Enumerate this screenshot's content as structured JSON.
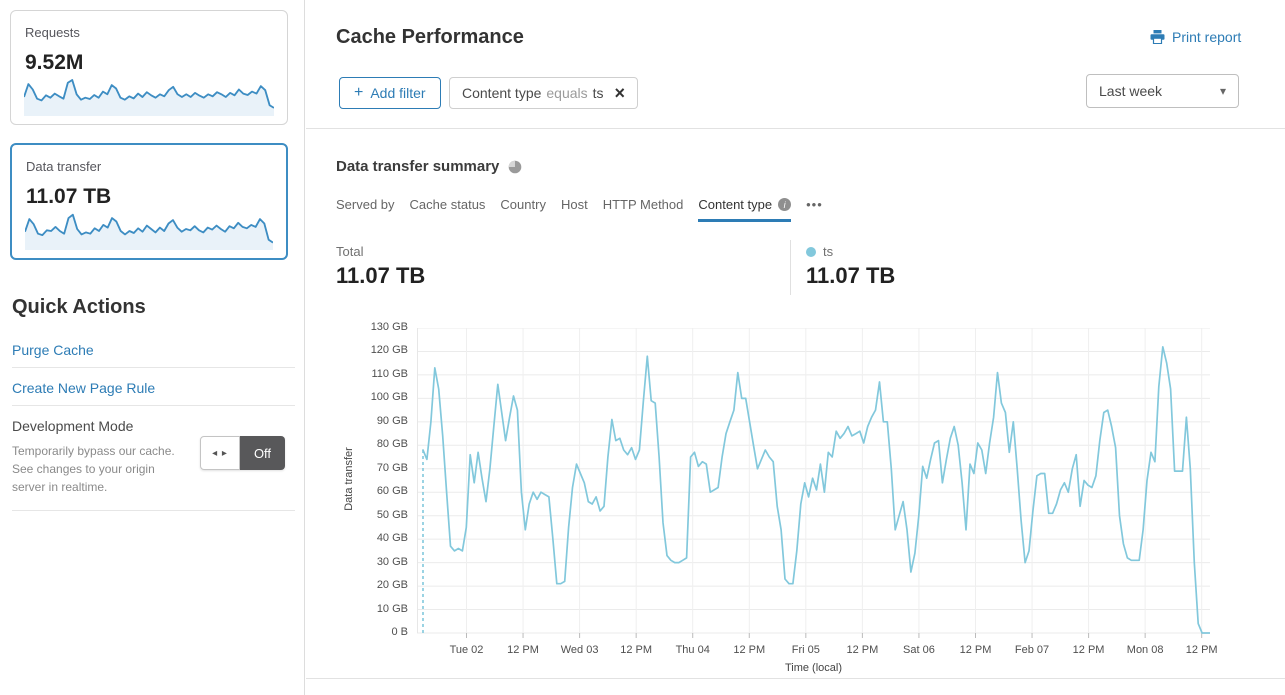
{
  "sidebar": {
    "cards": [
      {
        "label": "Requests",
        "value": "9.52M"
      },
      {
        "label": "Data transfer",
        "value": "11.07 TB"
      }
    ],
    "quick_actions_title": "Quick Actions",
    "links": [
      "Purge Cache",
      "Create New Page Rule"
    ],
    "dev_mode": {
      "title": "Development Mode",
      "description": "Temporarily bypass our cache. See changes to your origin server in realtime.",
      "toggle_label": "Off"
    }
  },
  "header": {
    "title": "Cache Performance",
    "print_label": "Print report",
    "add_filter_label": "Add filter",
    "filter_chip": {
      "field": "Content type",
      "operator": "equals",
      "value": "ts"
    },
    "time_range": "Last week"
  },
  "summary": {
    "title": "Data transfer summary",
    "tabs": [
      "Served by",
      "Cache status",
      "Country",
      "Host",
      "HTTP Method",
      "Content type"
    ],
    "active_tab": "Content type",
    "total_label": "Total",
    "total_value": "11.07 TB",
    "legend_label": "ts",
    "legend_value": "11.07 TB"
  },
  "icons": {
    "plus": "+",
    "close": "×",
    "caret_down": "▾",
    "more": "•••",
    "dev_toggle_arrows": "◂ ▸",
    "info": "i"
  },
  "colors": {
    "link_blue": "#2d7cb5",
    "chart_line": "#82c8dc",
    "spark_line": "#3d8dc3",
    "spark_fill": "#e9f2f9",
    "grid": "#ebebeb",
    "selected_card_border": "#3d8dc3",
    "toggle_off_bg": "#58585a"
  },
  "chart_data": [
    {
      "id": "data-transfer-timeseries",
      "type": "line",
      "title": "Data transfer summary",
      "xlabel": "Time (local)",
      "ylabel": "Data transfer",
      "unit": "GB",
      "ylim": [
        0,
        130
      ],
      "grid": true,
      "y_ticks": [
        "0 B",
        "10 GB",
        "20 GB",
        "30 GB",
        "40 GB",
        "50 GB",
        "60 GB",
        "70 GB",
        "80 GB",
        "90 GB",
        "100 GB",
        "110 GB",
        "120 GB",
        "130 GB"
      ],
      "x_ticks": [
        "Tue 02",
        "12 PM",
        "Wed 03",
        "12 PM",
        "Thu 04",
        "12 PM",
        "Fri 05",
        "12 PM",
        "Sat 06",
        "12 PM",
        "Feb 07",
        "12 PM",
        "Mon 08",
        "12 PM"
      ],
      "legend": [
        {
          "label": "ts",
          "color": "#82c8dc"
        }
      ],
      "series": [
        {
          "name": "ts",
          "values": [
            78,
            74,
            90,
            113,
            104,
            84,
            60,
            37,
            35,
            36,
            35,
            45,
            76,
            64,
            77,
            66,
            56,
            70,
            88,
            106,
            94,
            82,
            92,
            101,
            95,
            60,
            44,
            55,
            60,
            57,
            60,
            59,
            58,
            40,
            21,
            21,
            22,
            45,
            62,
            72,
            68,
            64,
            56,
            55,
            58,
            52,
            54,
            75,
            91,
            82,
            83,
            78,
            76,
            79,
            74,
            78,
            99,
            118,
            99,
            98,
            75,
            47,
            33,
            31,
            30,
            30,
            31,
            32,
            75,
            77,
            71,
            73,
            72,
            60,
            61,
            62,
            75,
            85,
            90,
            95,
            111,
            100,
            100,
            90,
            80,
            70,
            74,
            78,
            75,
            73,
            54,
            44,
            23,
            21,
            21,
            35,
            55,
            64,
            58,
            66,
            61,
            72,
            60,
            77,
            75,
            86,
            83,
            85,
            88,
            84,
            85,
            86,
            81,
            88,
            92,
            95,
            107,
            90,
            90,
            70,
            44,
            50,
            56,
            44,
            26,
            34,
            50,
            71,
            66,
            74,
            81,
            82,
            64,
            74,
            83,
            88,
            80,
            64,
            44,
            72,
            68,
            81,
            78,
            68,
            81,
            92,
            111,
            98,
            94,
            77,
            90,
            70,
            48,
            30,
            35,
            52,
            67,
            68,
            68,
            51,
            51,
            55,
            61,
            64,
            60,
            70,
            76,
            54,
            65,
            63,
            62,
            67,
            82,
            94,
            95,
            88,
            79,
            50,
            38,
            32,
            31,
            31,
            31,
            44,
            65,
            77,
            73,
            105,
            122,
            115,
            104,
            69,
            69,
            69,
            92,
            70,
            30,
            4,
            0,
            0,
            0
          ]
        }
      ]
    },
    {
      "id": "requests-sparkline",
      "type": "line",
      "title": "Requests",
      "values": [
        50,
        88,
        72,
        45,
        40,
        55,
        48,
        60,
        52,
        45,
        92,
        100,
        58,
        42,
        48,
        44,
        56,
        48,
        66,
        58,
        85,
        75,
        48,
        42,
        52,
        46,
        60,
        50,
        64,
        55,
        48,
        58,
        52,
        70,
        80,
        58,
        50,
        58,
        50,
        62,
        54,
        48,
        58,
        52,
        64,
        58,
        50,
        62,
        55,
        72,
        60,
        56,
        66,
        60,
        82,
        70,
        26,
        18
      ]
    },
    {
      "id": "data-transfer-sparkline",
      "type": "line",
      "title": "Data transfer",
      "values": [
        48,
        85,
        70,
        42,
        38,
        52,
        50,
        62,
        50,
        42,
        88,
        98,
        56,
        40,
        46,
        42,
        58,
        50,
        68,
        60,
        88,
        78,
        50,
        40,
        50,
        44,
        58,
        48,
        66,
        56,
        46,
        60,
        50,
        72,
        82,
        60,
        48,
        56,
        52,
        64,
        52,
        46,
        60,
        54,
        66,
        56,
        48,
        64,
        58,
        74,
        62,
        58,
        68,
        62,
        85,
        72,
        24,
        16
      ]
    }
  ]
}
